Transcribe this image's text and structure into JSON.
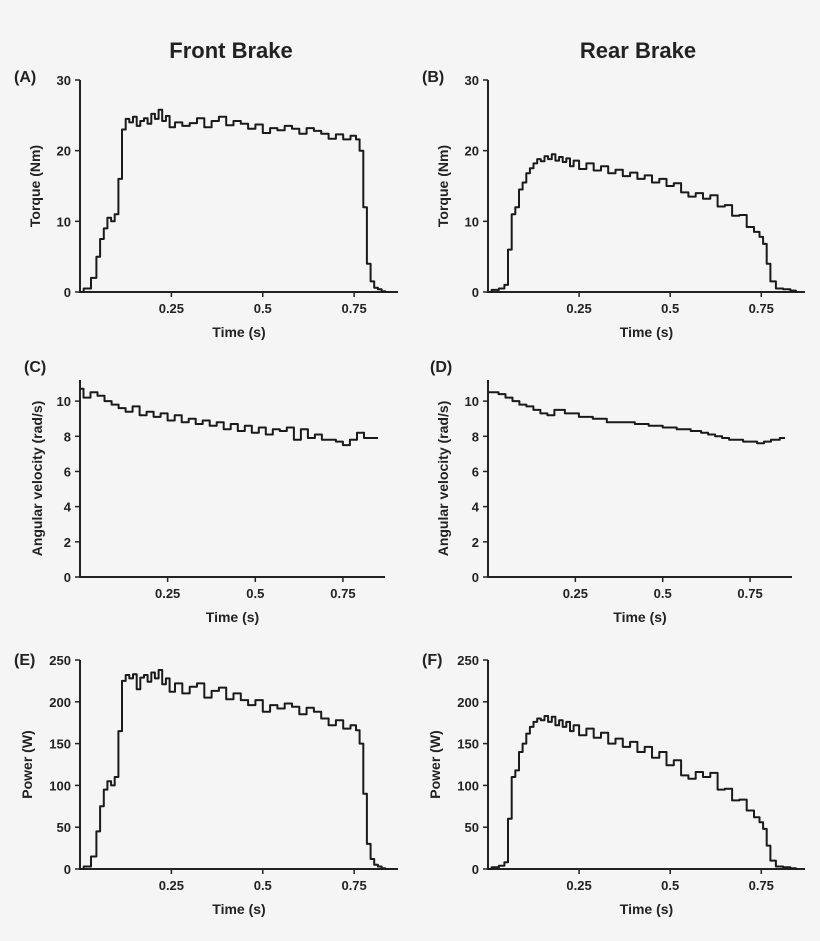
{
  "figure": {
    "column_titles": [
      "Front Brake",
      "Rear Brake"
    ]
  },
  "colors": {
    "background": "#f5f5f5",
    "line": "#1a1a1a",
    "axis": "#222222"
  },
  "chart_data": [
    {
      "id": "A",
      "panel_label": "(A)",
      "type": "line",
      "xlabel": "Time (s)",
      "ylabel": "Torque (Nm)",
      "xlim": [
        0,
        0.87
      ],
      "ylim": [
        0,
        30
      ],
      "xticks": [
        0.25,
        0.5,
        0.75
      ],
      "xtick_labels": [
        "0.25",
        "0.5",
        "0.75"
      ],
      "yticks": [
        0,
        10,
        20,
        30
      ],
      "ytick_labels": [
        "0",
        "10",
        "20",
        "30"
      ],
      "series": [
        {
          "x": [
            0,
            0.02,
            0.04,
            0.05,
            0.06,
            0.07,
            0.08,
            0.09,
            0.1,
            0.11,
            0.12,
            0.13,
            0.14,
            0.15,
            0.16,
            0.17,
            0.18,
            0.19,
            0.2,
            0.21,
            0.22,
            0.23,
            0.24,
            0.25,
            0.27,
            0.29,
            0.31,
            0.33,
            0.35,
            0.37,
            0.39,
            0.41,
            0.43,
            0.45,
            0.47,
            0.49,
            0.51,
            0.53,
            0.55,
            0.57,
            0.59,
            0.61,
            0.63,
            0.65,
            0.67,
            0.69,
            0.71,
            0.73,
            0.75,
            0.76,
            0.77,
            0.78,
            0.79,
            0.8,
            0.81,
            0.82,
            0.83,
            0.84,
            0.85
          ],
          "y": [
            0,
            0.5,
            2,
            5,
            7.5,
            9,
            10.5,
            10,
            11,
            16,
            23,
            24.5,
            24,
            24.8,
            23.5,
            24.2,
            24.6,
            23.8,
            25.2,
            24.5,
            25.8,
            24.2,
            24.9,
            23.3,
            24,
            23.5,
            23.9,
            24.6,
            23.3,
            24.2,
            24.8,
            23.6,
            24.2,
            23.8,
            23.1,
            23.7,
            22.5,
            23.2,
            22.9,
            23.5,
            23.1,
            22.4,
            23.2,
            22.8,
            22.4,
            21.7,
            22.3,
            21.6,
            22.1,
            21.6,
            20,
            12,
            4,
            1.5,
            0.6,
            0.4,
            0.1,
            0,
            0
          ]
        }
      ]
    },
    {
      "id": "B",
      "panel_label": "(B)",
      "type": "line",
      "xlabel": "Time (s)",
      "ylabel": "Torque (Nm)",
      "xlim": [
        0,
        0.87
      ],
      "ylim": [
        0,
        30
      ],
      "xticks": [
        0.25,
        0.5,
        0.75
      ],
      "xtick_labels": [
        "0.25",
        "0.5",
        "0.75"
      ],
      "yticks": [
        0,
        10,
        20,
        30
      ],
      "ytick_labels": [
        "0",
        "10",
        "20",
        "30"
      ],
      "series": [
        {
          "x": [
            0,
            0.02,
            0.04,
            0.05,
            0.06,
            0.07,
            0.08,
            0.09,
            0.1,
            0.11,
            0.12,
            0.13,
            0.14,
            0.15,
            0.16,
            0.17,
            0.18,
            0.19,
            0.2,
            0.21,
            0.22,
            0.23,
            0.24,
            0.26,
            0.28,
            0.3,
            0.32,
            0.34,
            0.36,
            0.38,
            0.4,
            0.42,
            0.44,
            0.46,
            0.48,
            0.5,
            0.52,
            0.54,
            0.56,
            0.58,
            0.6,
            0.62,
            0.64,
            0.66,
            0.68,
            0.7,
            0.72,
            0.74,
            0.75,
            0.76,
            0.77,
            0.78,
            0.8,
            0.82,
            0.84,
            0.85
          ],
          "y": [
            0,
            0.3,
            0.5,
            1,
            6,
            11,
            12,
            14.5,
            15.5,
            16.8,
            17.5,
            18.2,
            18.8,
            18.5,
            19.2,
            18.8,
            19.5,
            18.6,
            19.1,
            18.4,
            18.9,
            17.8,
            18.6,
            17.4,
            18.2,
            17.2,
            17.8,
            16.8,
            17.3,
            16.4,
            16.9,
            16,
            16.5,
            15.5,
            16,
            15,
            15.4,
            14.1,
            13.5,
            14,
            13.2,
            13.7,
            12.1,
            12.3,
            10.8,
            10.9,
            9.2,
            8.5,
            7.8,
            6.8,
            4,
            1.5,
            0.5,
            0.4,
            0.2,
            0
          ]
        }
      ]
    },
    {
      "id": "C",
      "panel_label": "(C)",
      "type": "line",
      "xlabel": "Time (s)",
      "ylabel": "Angular velocity (rad/s)",
      "xlim": [
        0,
        0.87
      ],
      "ylim": [
        0,
        11.2
      ],
      "xticks": [
        0.25,
        0.5,
        0.75
      ],
      "xtick_labels": [
        "0.25",
        "0.5",
        "0.75"
      ],
      "yticks": [
        0,
        2,
        4,
        6,
        8,
        10
      ],
      "ytick_labels": [
        "0",
        "2",
        "4",
        "6",
        "8",
        "10"
      ],
      "series": [
        {
          "x": [
            0,
            0.02,
            0.04,
            0.06,
            0.08,
            0.1,
            0.12,
            0.14,
            0.16,
            0.18,
            0.2,
            0.22,
            0.24,
            0.26,
            0.28,
            0.3,
            0.32,
            0.34,
            0.36,
            0.38,
            0.4,
            0.42,
            0.44,
            0.46,
            0.48,
            0.5,
            0.52,
            0.54,
            0.56,
            0.58,
            0.6,
            0.62,
            0.64,
            0.66,
            0.68,
            0.7,
            0.72,
            0.74,
            0.76,
            0.78,
            0.8,
            0.82,
            0.85
          ],
          "y": [
            10.7,
            10.2,
            10.5,
            10.3,
            10.0,
            9.8,
            9.6,
            9.4,
            9.7,
            9.2,
            9.4,
            9.1,
            9.3,
            8.9,
            9.2,
            8.8,
            9.0,
            8.7,
            8.9,
            8.6,
            8.8,
            8.4,
            8.7,
            8.3,
            8.6,
            8.2,
            8.5,
            8.1,
            8.4,
            8.3,
            8.5,
            7.8,
            8.4,
            7.9,
            8.1,
            7.8,
            7.8,
            7.7,
            7.5,
            7.8,
            8.2,
            7.9,
            7.9
          ]
        }
      ]
    },
    {
      "id": "D",
      "panel_label": "(D)",
      "type": "line",
      "xlabel": "Time (s)",
      "ylabel": "Angular velocity (rad/s)",
      "xlim": [
        0,
        0.87
      ],
      "ylim": [
        0,
        11.2
      ],
      "xticks": [
        0.25,
        0.5,
        0.75
      ],
      "xtick_labels": [
        "0.25",
        "0.5",
        "0.75"
      ],
      "yticks": [
        0,
        2,
        4,
        6,
        8,
        10
      ],
      "ytick_labels": [
        "0",
        "2",
        "4",
        "6",
        "8",
        "10"
      ],
      "series": [
        {
          "x": [
            0,
            0.02,
            0.04,
            0.06,
            0.08,
            0.1,
            0.12,
            0.14,
            0.16,
            0.18,
            0.2,
            0.24,
            0.28,
            0.32,
            0.36,
            0.4,
            0.44,
            0.48,
            0.52,
            0.56,
            0.6,
            0.62,
            0.64,
            0.66,
            0.68,
            0.7,
            0.72,
            0.74,
            0.76,
            0.78,
            0.8,
            0.82,
            0.85
          ],
          "y": [
            10.5,
            10.5,
            10.4,
            10.2,
            10.0,
            9.8,
            9.7,
            9.5,
            9.3,
            9.2,
            9.5,
            9.3,
            9.1,
            9.0,
            8.8,
            8.8,
            8.7,
            8.6,
            8.5,
            8.4,
            8.3,
            8.2,
            8.1,
            8.0,
            7.9,
            7.8,
            7.8,
            7.7,
            7.7,
            7.6,
            7.7,
            7.8,
            7.9
          ]
        }
      ]
    },
    {
      "id": "E",
      "panel_label": "(E)",
      "type": "line",
      "xlabel": "Time (s)",
      "ylabel": "Power (W)",
      "xlim": [
        0,
        0.87
      ],
      "ylim": [
        0,
        250
      ],
      "xticks": [
        0.25,
        0.5,
        0.75
      ],
      "xtick_labels": [
        "0.25",
        "0.5",
        "0.75"
      ],
      "yticks": [
        0,
        50,
        100,
        150,
        200,
        250
      ],
      "ytick_labels": [
        "0",
        "50",
        "100",
        "150",
        "200",
        "250"
      ],
      "series": [
        {
          "x": [
            0,
            0.02,
            0.04,
            0.05,
            0.06,
            0.07,
            0.08,
            0.09,
            0.1,
            0.11,
            0.12,
            0.13,
            0.14,
            0.15,
            0.16,
            0.17,
            0.18,
            0.19,
            0.2,
            0.21,
            0.22,
            0.23,
            0.24,
            0.25,
            0.27,
            0.29,
            0.31,
            0.33,
            0.35,
            0.37,
            0.39,
            0.41,
            0.43,
            0.45,
            0.47,
            0.49,
            0.51,
            0.53,
            0.55,
            0.57,
            0.59,
            0.61,
            0.63,
            0.65,
            0.67,
            0.69,
            0.71,
            0.73,
            0.75,
            0.76,
            0.77,
            0.78,
            0.79,
            0.8,
            0.81,
            0.82,
            0.83,
            0.84,
            0.85
          ],
          "y": [
            0,
            3,
            15,
            45,
            75,
            95,
            105,
            100,
            110,
            165,
            225,
            232,
            228,
            233,
            215,
            229,
            232,
            224,
            235,
            228,
            238,
            221,
            228,
            212,
            222,
            210,
            218,
            222,
            205,
            213,
            217,
            203,
            210,
            202,
            196,
            202,
            188,
            196,
            192,
            198,
            194,
            185,
            193,
            188,
            180,
            172,
            178,
            168,
            172,
            166,
            150,
            90,
            30,
            12,
            5,
            3,
            1,
            0,
            0
          ]
        }
      ]
    },
    {
      "id": "F",
      "panel_label": "(F)",
      "type": "line",
      "xlabel": "Time (s)",
      "ylabel": "Power (W)",
      "xlim": [
        0,
        0.87
      ],
      "ylim": [
        0,
        250
      ],
      "xticks": [
        0.25,
        0.5,
        0.75
      ],
      "xtick_labels": [
        "0.25",
        "0.5",
        "0.75"
      ],
      "yticks": [
        0,
        50,
        100,
        150,
        200,
        250
      ],
      "ytick_labels": [
        "0",
        "50",
        "100",
        "150",
        "200",
        "250"
      ],
      "series": [
        {
          "x": [
            0,
            0.02,
            0.04,
            0.05,
            0.06,
            0.07,
            0.08,
            0.09,
            0.1,
            0.11,
            0.12,
            0.13,
            0.14,
            0.15,
            0.16,
            0.17,
            0.18,
            0.19,
            0.2,
            0.21,
            0.22,
            0.23,
            0.24,
            0.26,
            0.28,
            0.3,
            0.32,
            0.34,
            0.36,
            0.38,
            0.4,
            0.42,
            0.44,
            0.46,
            0.48,
            0.5,
            0.52,
            0.54,
            0.56,
            0.58,
            0.6,
            0.62,
            0.64,
            0.66,
            0.68,
            0.7,
            0.72,
            0.74,
            0.75,
            0.76,
            0.77,
            0.78,
            0.8,
            0.82,
            0.84,
            0.85
          ],
          "y": [
            0,
            2,
            4,
            8,
            60,
            110,
            118,
            140,
            150,
            162,
            170,
            176,
            180,
            178,
            183,
            176,
            182,
            172,
            178,
            170,
            176,
            165,
            172,
            160,
            168,
            157,
            163,
            150,
            156,
            146,
            152,
            140,
            146,
            133,
            140,
            124,
            130,
            112,
            108,
            116,
            110,
            115,
            95,
            96,
            82,
            83,
            70,
            62,
            56,
            48,
            28,
            10,
            3,
            2,
            1,
            0
          ]
        }
      ]
    }
  ]
}
